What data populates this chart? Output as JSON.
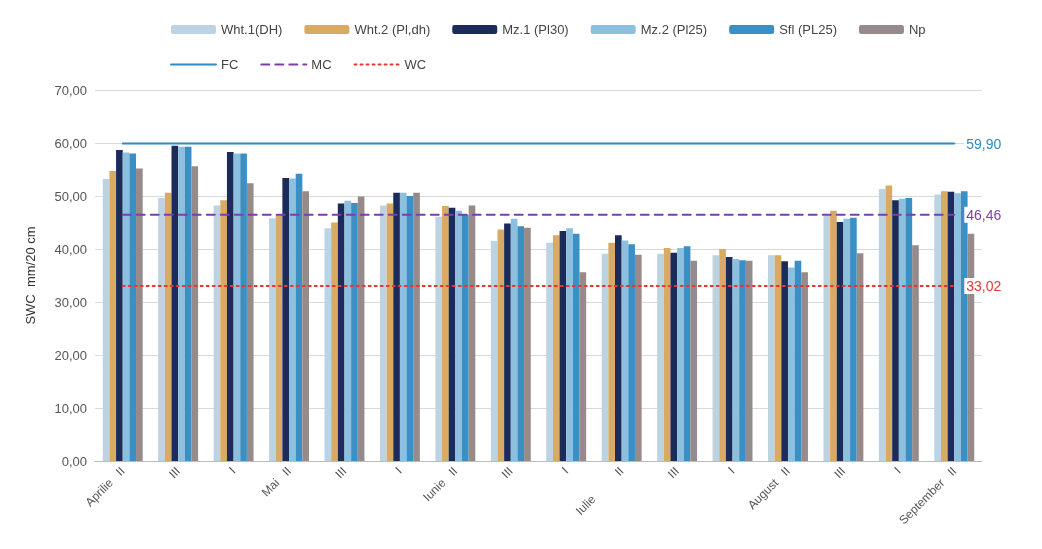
{
  "chart_data": {
    "type": "bar",
    "ylabel": "SWC  mm/20 cm",
    "categories": [
      "Aprilie   II",
      "III",
      "I",
      "Mai   II",
      "III",
      "I",
      "Iunie   II",
      "III",
      "I",
      "Iulie          II",
      "III",
      "I",
      "August   II",
      "III",
      "I",
      "September   II"
    ],
    "series": [
      {
        "name": "Wht.1(DH)",
        "color": "#bcd3e3",
        "values": [
          53.2,
          49.6,
          48.2,
          45.8,
          43.9,
          48.2,
          46.1,
          41.5,
          41.2,
          39.1,
          39.1,
          38.8,
          38.8,
          46.3,
          51.3,
          50.3
        ]
      },
      {
        "name": "Wht.2 (Pl,dh)",
        "color": "#d9aa63",
        "values": [
          54.7,
          50.6,
          49.2,
          46.4,
          45.0,
          48.6,
          48.1,
          43.7,
          42.6,
          41.2,
          40.2,
          40.0,
          38.8,
          47.2,
          52.0,
          50.9
        ]
      },
      {
        "name": "Mz.1 (Pl30)",
        "color": "#1b2b5a",
        "values": [
          58.7,
          59.5,
          58.3,
          53.4,
          48.6,
          50.6,
          47.8,
          44.8,
          43.4,
          42.6,
          39.3,
          38.5,
          37.7,
          45.1,
          49.2,
          50.8
        ]
      },
      {
        "name": "Mz.2 (Pl25)",
        "color": "#8cc0de",
        "values": [
          58.2,
          59.3,
          58.0,
          53.3,
          49.1,
          50.6,
          47.2,
          45.7,
          43.9,
          41.6,
          40.2,
          38.1,
          36.5,
          45.7,
          49.5,
          50.5
        ]
      },
      {
        "name": "Sfl (PL25)",
        "color": "#3a8fc4",
        "values": [
          58.0,
          59.3,
          58.0,
          54.2,
          48.7,
          50.0,
          46.4,
          44.3,
          42.9,
          40.9,
          40.5,
          37.9,
          37.8,
          45.9,
          49.6,
          50.9
        ]
      },
      {
        "name": "Np",
        "color": "#968a8a",
        "values": [
          55.2,
          55.6,
          52.4,
          50.9,
          49.9,
          50.6,
          48.2,
          44.0,
          35.6,
          38.9,
          37.8,
          37.8,
          35.6,
          39.2,
          40.7,
          42.9
        ]
      },
      {
        "name": "FC",
        "type": "line",
        "color": "#2e8bc6",
        "line_style": "solid",
        "values": [
          59.9,
          59.9,
          59.9,
          59.9,
          59.9,
          59.9,
          59.9,
          59.9,
          59.9,
          59.9,
          59.9,
          59.9,
          59.9,
          59.9,
          59.9,
          59.9
        ],
        "value_labels": [
          null,
          null,
          null,
          null,
          null,
          null,
          null,
          null,
          null,
          null,
          null,
          null,
          null,
          null,
          null,
          "59,90"
        ]
      },
      {
        "name": "MC",
        "type": "line",
        "color": "#7a3fa8",
        "line_style": "dashed",
        "values": [
          46.46,
          46.46,
          46.46,
          46.46,
          46.46,
          46.46,
          46.46,
          46.46,
          46.46,
          46.46,
          46.46,
          46.46,
          46.46,
          46.46,
          46.46,
          46.46
        ],
        "value_labels": [
          null,
          null,
          null,
          null,
          null,
          null,
          null,
          null,
          null,
          null,
          null,
          null,
          null,
          null,
          null,
          "46,46"
        ]
      },
      {
        "name": "WC",
        "type": "line",
        "color": "#ee3333",
        "line_style": "dotted",
        "values": [
          33.02,
          33.02,
          33.02,
          33.02,
          33.02,
          33.02,
          33.02,
          33.02,
          33.02,
          33.02,
          33.02,
          33.02,
          33.02,
          33.02,
          33.02,
          33.02
        ],
        "value_labels": [
          null,
          null,
          null,
          null,
          null,
          null,
          null,
          null,
          null,
          null,
          null,
          null,
          null,
          null,
          null,
          "33,02"
        ]
      }
    ],
    "ylim": [
      0,
      70
    ],
    "yticks": [
      {
        "value": 0,
        "label": "0,00"
      },
      {
        "value": 10,
        "label": "10,00"
      },
      {
        "value": 20,
        "label": "20,00"
      },
      {
        "value": 30,
        "label": "30,00"
      },
      {
        "value": 40,
        "label": "40,00"
      },
      {
        "value": 50,
        "label": "50,00"
      },
      {
        "value": 60,
        "label": "60,00"
      },
      {
        "value": 70,
        "label": "70,00"
      }
    ],
    "grid": "y",
    "legend": "top",
    "marker": "none"
  }
}
